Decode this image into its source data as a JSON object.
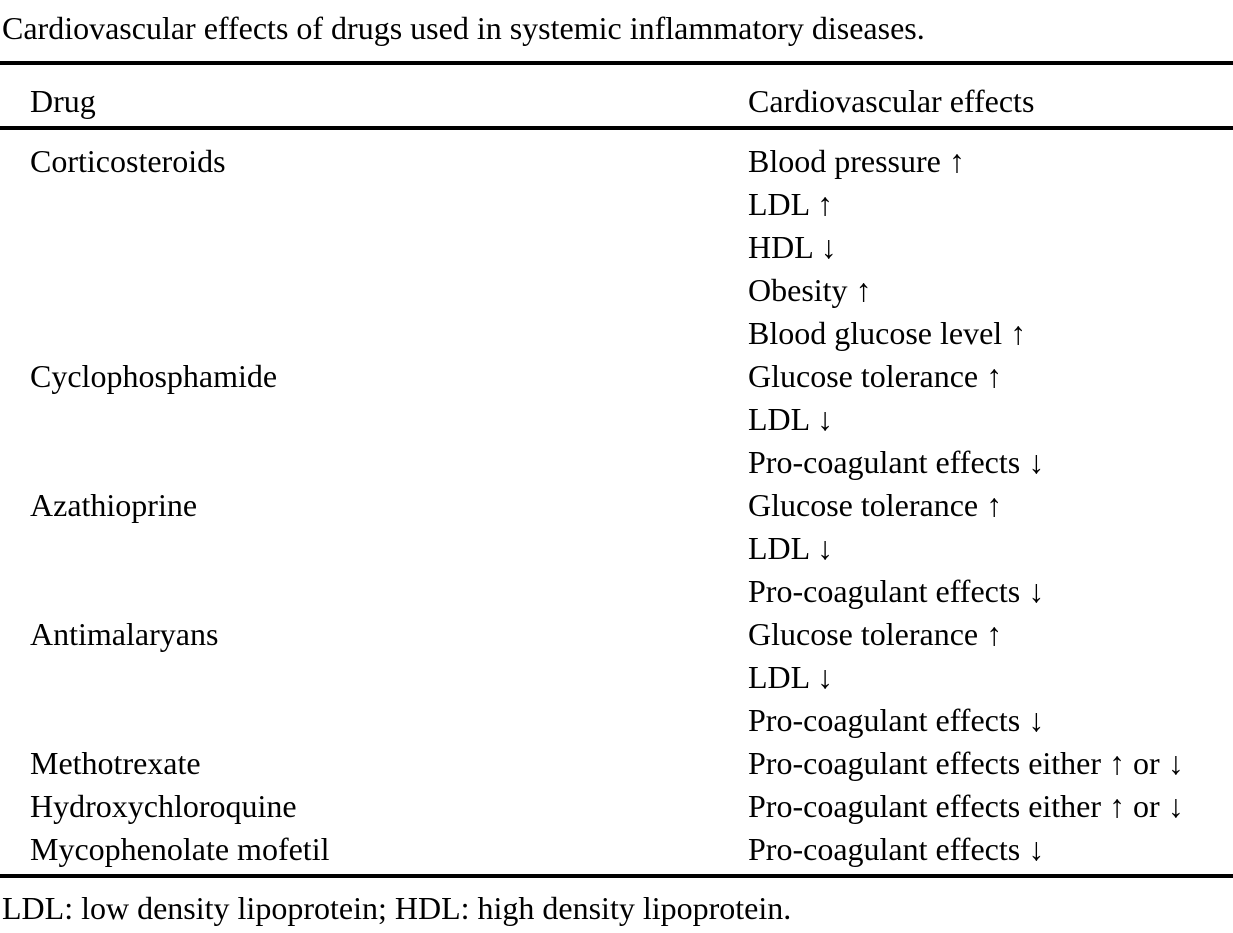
{
  "title": "Cardiovascular effects of drugs used in systemic inflammatory diseases.",
  "table": {
    "headers": {
      "drug": "Drug",
      "effects": "Cardiovascular effects"
    },
    "rows": [
      {
        "drug": "Corticosteroids",
        "effects": [
          "Blood pressure ↑",
          "LDL ↑",
          "HDL ↓",
          "Obesity ↑",
          "Blood glucose level ↑"
        ]
      },
      {
        "drug": "Cyclophosphamide",
        "effects": [
          "Glucose tolerance ↑",
          "LDL ↓",
          "Pro-coagulant effects ↓"
        ]
      },
      {
        "drug": "Azathioprine",
        "effects": [
          "Glucose tolerance ↑",
          "LDL ↓",
          "Pro-coagulant effects ↓"
        ]
      },
      {
        "drug": "Antimalaryans",
        "effects": [
          "Glucose tolerance ↑",
          "LDL ↓",
          "Pro-coagulant effects ↓"
        ]
      },
      {
        "drug": "Methotrexate",
        "effects": [
          "Pro-coagulant effects either ↑ or ↓"
        ]
      },
      {
        "drug": "Hydroxychloroquine",
        "effects": [
          "Pro-coagulant effects either ↑ or ↓"
        ]
      },
      {
        "drug": "Mycophenolate mofetil",
        "effects": [
          "Pro-coagulant effects ↓"
        ]
      }
    ],
    "footnote": "LDL: low density lipoprotein; HDL: high density lipoprotein."
  },
  "colors": {
    "background": "#ffffff",
    "text": "#000000",
    "rule": "#000000"
  }
}
